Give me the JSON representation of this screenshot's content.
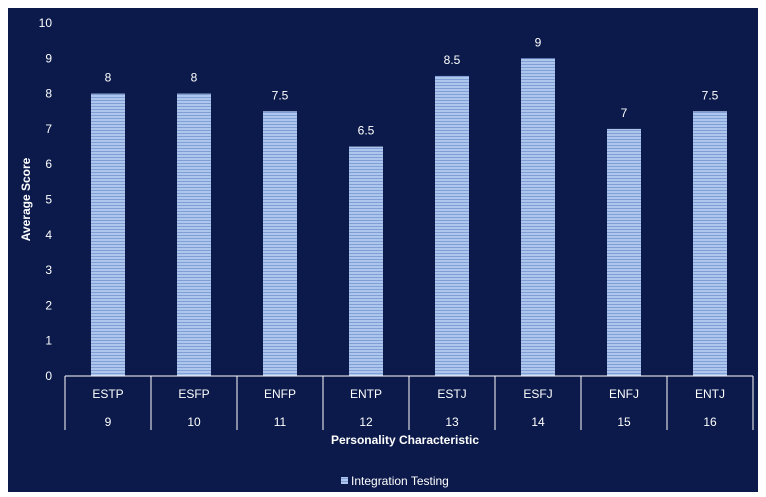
{
  "chart_data": {
    "type": "bar",
    "categories": [
      "ESTP",
      "ESFP",
      "ENFP",
      "ENTP",
      "ESTJ",
      "ESFJ",
      "ENFJ",
      "ENTJ"
    ],
    "category_numbers": [
      "9",
      "10",
      "11",
      "12",
      "13",
      "14",
      "15",
      "16"
    ],
    "series": [
      {
        "name": "Integration Testing",
        "values": [
          8,
          8,
          7.5,
          6.5,
          8.5,
          9,
          7,
          7.5
        ]
      }
    ],
    "data_labels": [
      "8",
      "8",
      "7.5",
      "6.5",
      "8.5",
      "9",
      "7",
      "7.5"
    ],
    "title": "",
    "xlabel": "Personality Characteristic",
    "ylabel": "Average Score",
    "ylim": [
      0,
      10
    ],
    "yticks": [
      "0",
      "1",
      "2",
      "3",
      "4",
      "5",
      "6",
      "7",
      "8",
      "9",
      "10"
    ],
    "grid": false,
    "legend": "bottom-center",
    "colors": {
      "background": "#0b1a4a",
      "bar": "#aec6ec",
      "bar_stripe": "#7f9fd6",
      "text": "#ffffff",
      "axis": "#ffffff"
    }
  }
}
